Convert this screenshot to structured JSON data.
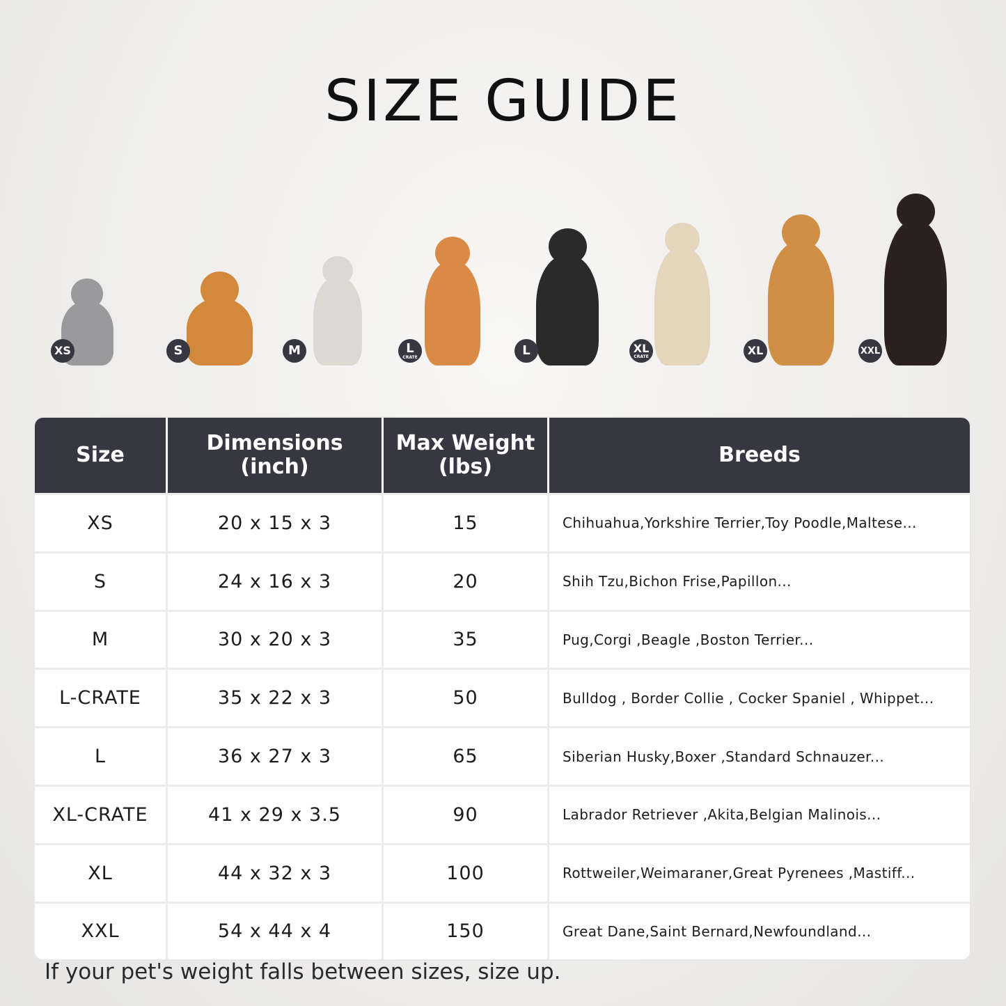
{
  "title": "SIZE GUIDE",
  "pets": [
    {
      "badge": "XS",
      "sub": "",
      "animal": "cat",
      "color": "#9a9a9c"
    },
    {
      "badge": "S",
      "sub": "",
      "animal": "pomeranian",
      "color": "#d2893c"
    },
    {
      "badge": "M",
      "sub": "",
      "animal": "french-bulldog",
      "color": "#dcd8d2"
    },
    {
      "badge": "L",
      "sub": "CRATE",
      "animal": "shiba-inu",
      "color": "#d98a45"
    },
    {
      "badge": "L",
      "sub": "",
      "animal": "border-collie",
      "color": "#2a2a2a"
    },
    {
      "badge": "XL",
      "sub": "CRATE",
      "animal": "labrador",
      "color": "#e3d6bd"
    },
    {
      "badge": "XL",
      "sub": "",
      "animal": "golden-retriever",
      "color": "#cf8f45"
    },
    {
      "badge": "XXL",
      "sub": "",
      "animal": "doberman",
      "color": "#2b2220"
    }
  ],
  "table": {
    "headers": [
      {
        "line1": "Size",
        "line2": ""
      },
      {
        "line1": "Dimensions",
        "line2": "(inch)"
      },
      {
        "line1": "Max Weight",
        "line2": "(lbs)"
      },
      {
        "line1": "Breeds",
        "line2": ""
      }
    ],
    "rows": [
      [
        "XS",
        "20 x 15 x 3",
        "15",
        "Chihuahua,Yorkshire Terrier,Toy Poodle,Maltese..."
      ],
      [
        "S",
        "24 x 16 x 3",
        "20",
        "Shih Tzu,Bichon Frise,Papillon..."
      ],
      [
        "M",
        "30 x 20 x 3",
        "35",
        "Pug,Corgi ,Beagle ,Boston Terrier..."
      ],
      [
        "L-CRATE",
        "35 x 22 x 3",
        "50",
        "Bulldog , Border Collie , Cocker Spaniel , Whippet..."
      ],
      [
        "L",
        "36 x 27 x 3",
        "65",
        "Siberian Husky,Boxer ,Standard Schnauzer..."
      ],
      [
        "XL-CRATE",
        "41 x 29 x 3.5",
        "90",
        "Labrador Retriever ,Akita,Belgian Malinois..."
      ],
      [
        "XL",
        "44 x 32 x 3",
        "100",
        "Rottweiler,Weimaraner,Great Pyrenees ,Mastiff..."
      ],
      [
        "XXL",
        "54 x 44 x 4",
        "150",
        "Great Dane,Saint Bernard,Newfoundland..."
      ]
    ]
  },
  "note": "If your pet's weight falls between sizes, size up.",
  "colors": {
    "header_bg": "#363740",
    "badge_bg": "#363740"
  }
}
